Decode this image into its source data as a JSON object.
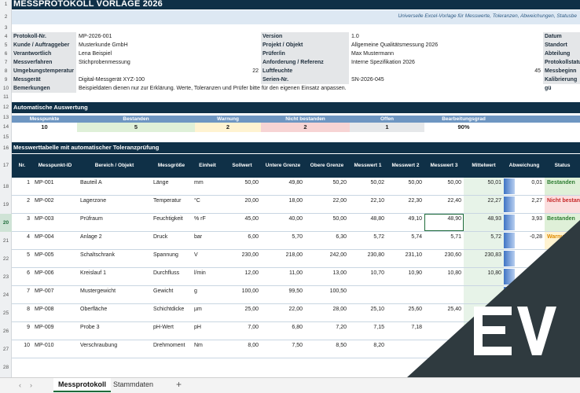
{
  "title": "MESSPROTOKOLL VORLAGE 2026",
  "subtitle": "Universelle Excel-Vorlage für Messwerte, Toleranzen, Abweichungen, Statusbe",
  "row_numbers": [
    "1",
    "2",
    "3",
    "4",
    "5",
    "6",
    "7",
    "8",
    "9",
    "10",
    "11",
    "12",
    "13",
    "14",
    "15",
    "16",
    "17",
    "18",
    "19",
    "20",
    "21",
    "22",
    "23",
    "24",
    "25",
    "26",
    "27",
    "28"
  ],
  "info": {
    "protokoll_label": "Protokoll-Nr.",
    "protokoll_value": "MP-2026-001",
    "kunde_label": "Kunde / Auftraggeber",
    "kunde_value": "Musterkunde GmbH",
    "verantwortlich_label": "Verantwortlich",
    "verantwortlich_value": "Lena Beispiel",
    "messverfahren_label": "Messverfahren",
    "messverfahren_value": "Stichprobenmessung",
    "umgebung_label": "Umgebungstemperatur",
    "umgebung_value": "22",
    "messgeraet_label": "Messgerät",
    "messgeraet_value": "Digital-Messgerät XYZ-100",
    "bemerkungen_label": "Bemerkungen",
    "bemerkungen_value": "Beispieldaten dienen nur zur Erklärung. Werte, Toleranzen und Prüfer bitte für den eigenen Einsatz anpassen.",
    "version_label": "Version",
    "version_value": "1.0",
    "projekt_label": "Projekt / Objekt",
    "projekt_value": "Allgemeine Qualitätsmessung 2026",
    "pruefer_label": "Prüfer/in",
    "pruefer_value": "Max Mustermann",
    "anforderung_label": "Anforderung / Referenz",
    "anforderung_value": "Interne Spezifikation 2026",
    "luftfeuchte_label": "Luftfeuchte",
    "luftfeuchte_value": "45",
    "serien_label": "Serien-Nr.",
    "serien_value": "SN-2026-045",
    "datum_label": "Datum",
    "standort_label": "Standort",
    "abteilung_label": "Abteilung",
    "protokollstatus_label": "Protokollstatus",
    "messbeginn_label": "Messbeginn",
    "kalibrierung_label": "Kalibrierung gü"
  },
  "auswertung": {
    "title": "Automatische Auswertung",
    "headers": [
      "Messpunkte",
      "Bestanden",
      "Warnung",
      "Nicht bestanden",
      "Offen",
      "Bearbeitungsgrad"
    ],
    "values": [
      "10",
      "5",
      "2",
      "2",
      "1",
      "90%"
    ]
  },
  "table": {
    "title": "Messwerttabelle mit automatischer Toleranzprüfung",
    "headers": [
      "Nr.",
      "Messpunkt-ID",
      "Bereich / Objekt",
      "Messgröße",
      "Einheit",
      "Sollwert",
      "Untere Grenze",
      "Obere Grenze",
      "Messwert 1",
      "Messwert 2",
      "Messwert 3",
      "Mittelwert",
      "Abweichung",
      "Status"
    ],
    "rows": [
      {
        "nr": "1",
        "id": "MP-001",
        "bereich": "Bauteil A",
        "groesse": "Länge",
        "einheit": "mm",
        "soll": "50,00",
        "ug": "49,80",
        "og": "50,20",
        "m1": "50,02",
        "m2": "50,00",
        "m3": "50,00",
        "mw": "50,01",
        "abw": "0,01",
        "status": "Bestanden"
      },
      {
        "nr": "2",
        "id": "MP-002",
        "bereich": "Lagerzone",
        "groesse": "Temperatur",
        "einheit": "°C",
        "soll": "20,00",
        "ug": "18,00",
        "og": "22,00",
        "m1": "22,10",
        "m2": "22,30",
        "m3": "22,40",
        "mw": "22,27",
        "abw": "2,27",
        "status": "Nicht bestanden"
      },
      {
        "nr": "3",
        "id": "MP-003",
        "bereich": "Prüfraum",
        "groesse": "Feuchtigkeit",
        "einheit": "% rF",
        "soll": "45,00",
        "ug": "40,00",
        "og": "50,00",
        "m1": "48,80",
        "m2": "49,10",
        "m3": "48,90",
        "mw": "48,93",
        "abw": "3,93",
        "status": "Bestanden"
      },
      {
        "nr": "4",
        "id": "MP-004",
        "bereich": "Anlage 2",
        "groesse": "Druck",
        "einheit": "bar",
        "soll": "6,00",
        "ug": "5,70",
        "og": "6,30",
        "m1": "5,72",
        "m2": "5,74",
        "m3": "5,71",
        "mw": "5,72",
        "abw": "-0,28",
        "status": "Warnung"
      },
      {
        "nr": "5",
        "id": "MP-005",
        "bereich": "Schaltschrank",
        "groesse": "Spannung",
        "einheit": "V",
        "soll": "230,00",
        "ug": "218,00",
        "og": "242,00",
        "m1": "230,80",
        "m2": "231,10",
        "m3": "230,60",
        "mw": "230,83",
        "abw": "",
        "status": ""
      },
      {
        "nr": "6",
        "id": "MP-006",
        "bereich": "Kreislauf 1",
        "groesse": "Durchfluss",
        "einheit": "l/min",
        "soll": "12,00",
        "ug": "11,00",
        "og": "13,00",
        "m1": "10,70",
        "m2": "10,90",
        "m3": "10,80",
        "mw": "10,80",
        "abw": "",
        "status": ""
      },
      {
        "nr": "7",
        "id": "MP-007",
        "bereich": "Mustergewicht",
        "groesse": "Gewicht",
        "einheit": "g",
        "soll": "100,00",
        "ug": "99,50",
        "og": "100,50",
        "m1": "",
        "m2": "",
        "m3": "",
        "mw": "",
        "abw": "",
        "status": ""
      },
      {
        "nr": "8",
        "id": "MP-008",
        "bereich": "Oberfläche",
        "groesse": "Schichtdicke",
        "einheit": "µm",
        "soll": "25,00",
        "ug": "22,00",
        "og": "28,00",
        "m1": "25,10",
        "m2": "25,60",
        "m3": "25,40",
        "mw": "",
        "abw": "",
        "status": ""
      },
      {
        "nr": "9",
        "id": "MP-009",
        "bereich": "Probe 3",
        "groesse": "pH-Wert",
        "einheit": "pH",
        "soll": "7,00",
        "ug": "6,80",
        "og": "7,20",
        "m1": "7,15",
        "m2": "7,18",
        "m3": "",
        "mw": "",
        "abw": "",
        "status": ""
      },
      {
        "nr": "10",
        "id": "MP-010",
        "bereich": "Verschraubung",
        "groesse": "Drehmoment",
        "einheit": "Nm",
        "soll": "8,00",
        "ug": "7,50",
        "og": "8,50",
        "m1": "8,20",
        "m2": "",
        "m3": "",
        "mw": "",
        "abw": "",
        "status": ""
      }
    ]
  },
  "tabs": [
    "Messprotokoll",
    "Stammdaten"
  ],
  "add_tab": "+",
  "nav_prev": "‹",
  "nav_next": "›"
}
